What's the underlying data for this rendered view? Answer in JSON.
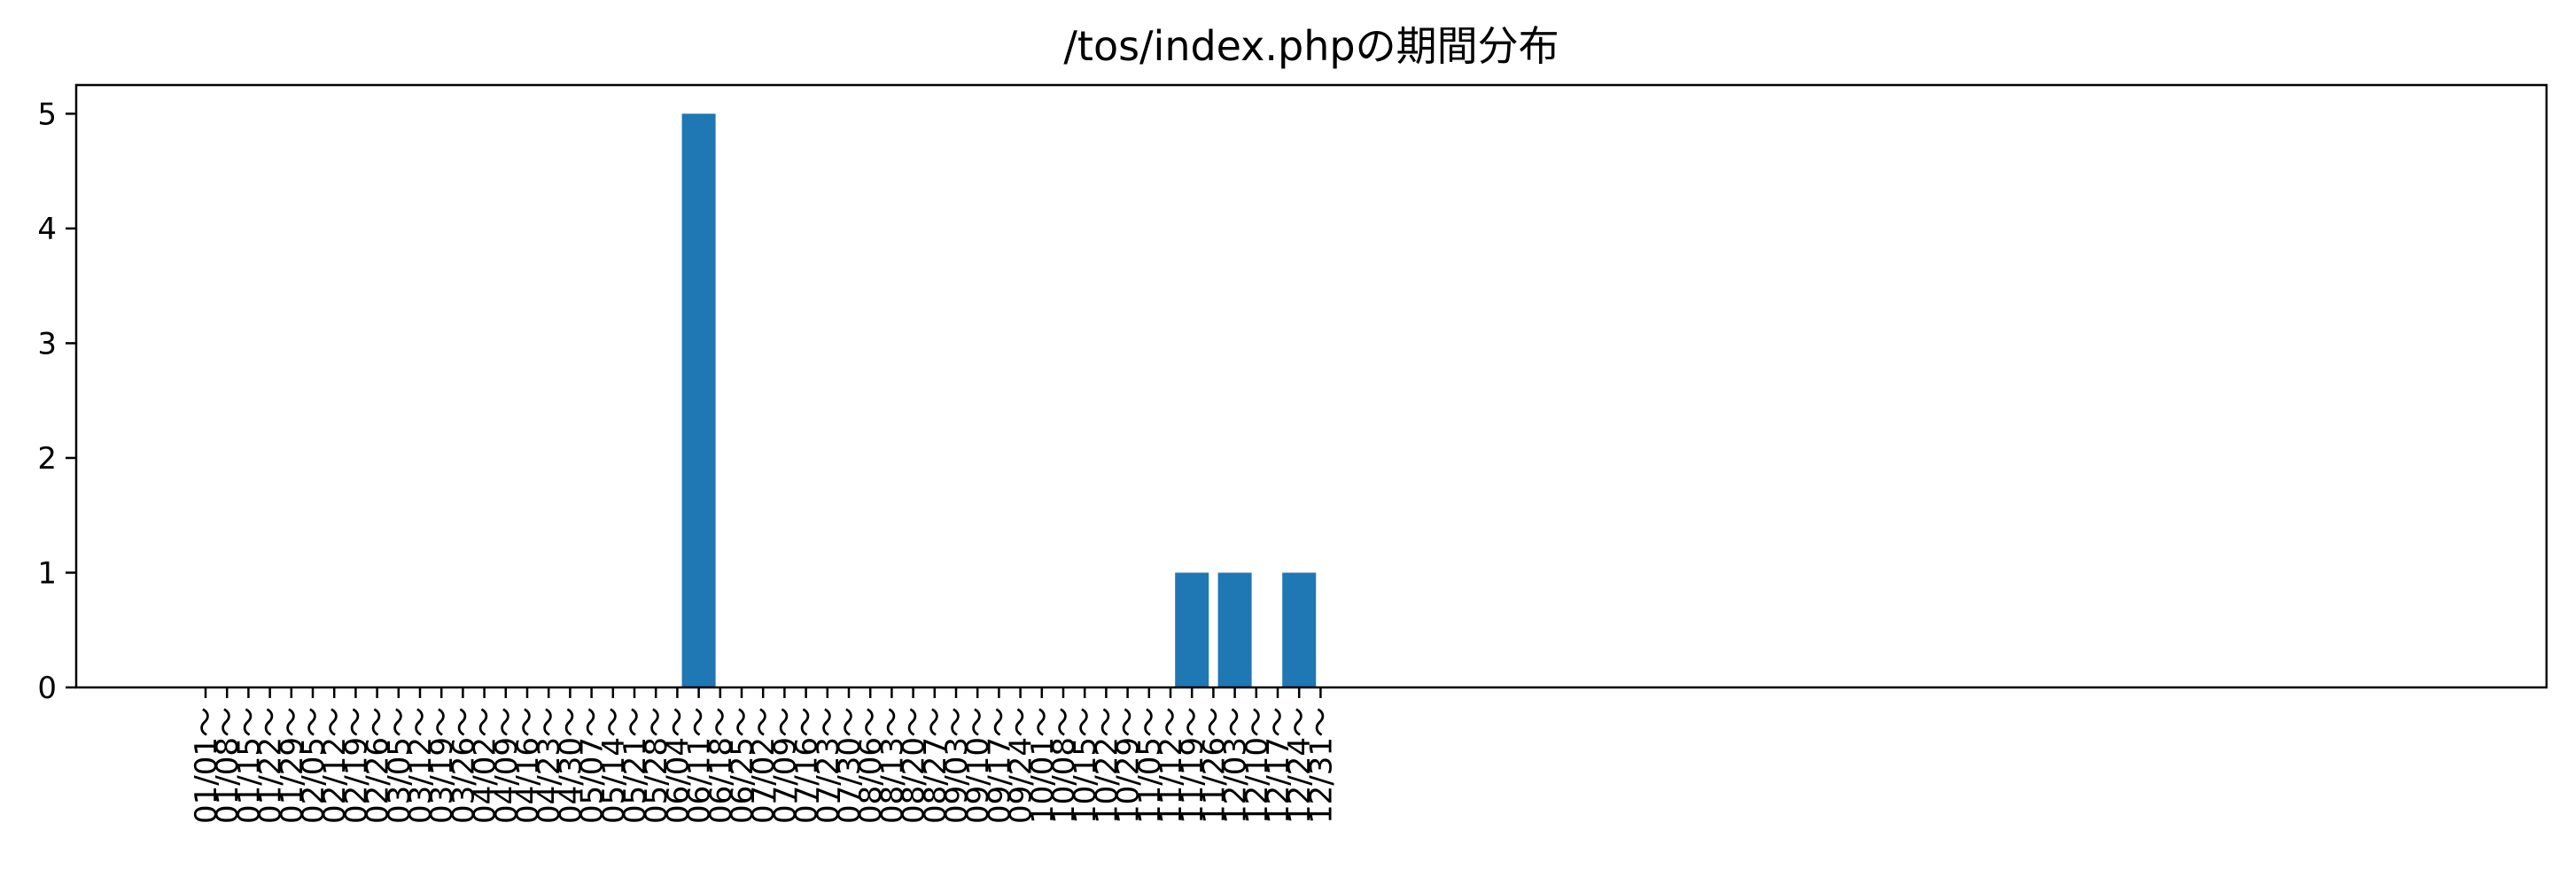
{
  "chart_data": {
    "type": "bar",
    "title": "/tos/index.phpの期間分布",
    "xlabel": "",
    "ylabel": "",
    "ylim": [
      0,
      5.25
    ],
    "yticks": [
      0,
      1,
      2,
      3,
      4,
      5
    ],
    "grid": false,
    "bar_color": "#1f77b4",
    "categories": [
      "01/01～",
      "01/08～",
      "01/15～",
      "01/22～",
      "01/29～",
      "02/05～",
      "02/12～",
      "02/19～",
      "02/26～",
      "03/05～",
      "03/12～",
      "03/19～",
      "03/26～",
      "04/02～",
      "04/09～",
      "04/16～",
      "04/23～",
      "04/30～",
      "05/07～",
      "05/14～",
      "05/21～",
      "05/28～",
      "06/04～",
      "06/11～",
      "06/18～",
      "06/25～",
      "07/02～",
      "07/09～",
      "07/16～",
      "07/23～",
      "07/30～",
      "08/06～",
      "08/13～",
      "08/20～",
      "08/27～",
      "09/03～",
      "09/10～",
      "09/17～",
      "09/24～",
      "10/01～",
      "10/08～",
      "10/15～",
      "10/22～",
      "10/29～",
      "11/05～",
      "11/12～",
      "11/19～",
      "11/26～",
      "12/03～",
      "12/10～",
      "12/17～",
      "12/24～",
      "12/31～"
    ],
    "values": [
      0,
      0,
      0,
      0,
      0,
      0,
      0,
      0,
      0,
      0,
      0,
      0,
      0,
      0,
      0,
      0,
      0,
      0,
      0,
      0,
      0,
      0,
      0,
      5,
      0,
      0,
      0,
      0,
      0,
      0,
      0,
      0,
      0,
      0,
      0,
      0,
      0,
      0,
      0,
      0,
      0,
      0,
      0,
      0,
      0,
      0,
      1,
      0,
      1,
      0,
      0,
      1,
      0
    ]
  }
}
